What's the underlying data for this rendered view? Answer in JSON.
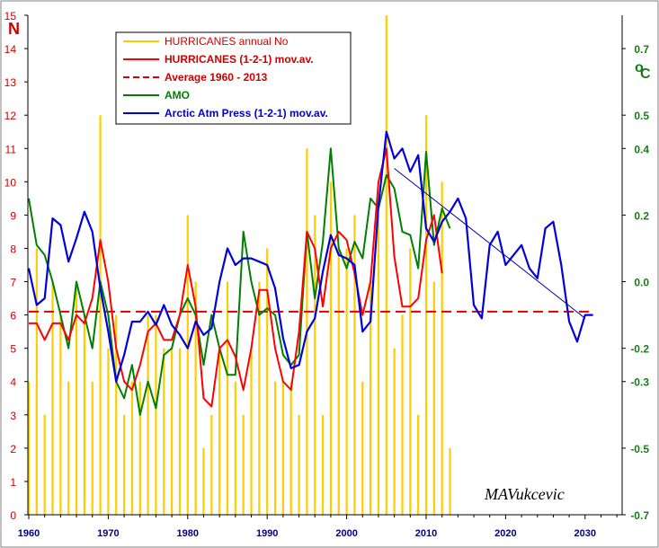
{
  "chart_data": {
    "type": "bar+line",
    "ylabel_left": "N",
    "ylabel_right_super": "o",
    "ylabel_right": "C",
    "signature": "MAVukcevic",
    "xlim": [
      1960,
      2034
    ],
    "x_ticks": [
      1960,
      1970,
      1980,
      1990,
      2000,
      2010,
      2020,
      2030
    ],
    "ylim_left": [
      0,
      15
    ],
    "y_ticks_left": [
      0,
      1,
      2,
      3,
      4,
      5,
      6,
      7,
      8,
      9,
      10,
      11,
      12,
      13,
      14,
      15
    ],
    "ylim_right": [
      -0.7,
      0.8
    ],
    "y_ticks_right": [
      0.7,
      0.5,
      0.4,
      0.2,
      0.0,
      -0.2,
      -0.3,
      -0.5,
      -0.7
    ],
    "y_tick_labels_right": [
      "0.7",
      "0.5",
      "0.4",
      "0.2",
      "0.0",
      "-0.2",
      "-0.3",
      "-0.5",
      "-0.7"
    ],
    "colors": {
      "hurricanes_bar": "#ffcc00",
      "hurricanes_ma": "#ff0000",
      "average": "#dd0000",
      "amo": "#008000",
      "arctic": "#0000dd",
      "trend": "#0000aa",
      "right_axis": "#1a7a1a",
      "left_axis": "#cc0000",
      "x_axis": "#000080"
    },
    "legend": [
      {
        "label": "HURRICANES annual No",
        "style": "bar"
      },
      {
        "label": "HURRICANES (1-2-1) mov.av.",
        "style": "line"
      },
      {
        "label": "Average 1960 - 2013",
        "style": "dashed"
      },
      {
        "label": "AMO",
        "style": "line"
      },
      {
        "label": "Arctic Atm Press (1-2-1) mov.av.",
        "style": "line"
      }
    ],
    "series": [
      {
        "key": "hurricanes_annual",
        "axis": "left",
        "kind": "bar",
        "x": [
          1960,
          1961,
          1962,
          1963,
          1964,
          1965,
          1966,
          1967,
          1968,
          1969,
          1970,
          1971,
          1972,
          1973,
          1974,
          1975,
          1976,
          1977,
          1978,
          1979,
          1980,
          1981,
          1982,
          1983,
          1984,
          1985,
          1986,
          1987,
          1988,
          1989,
          1990,
          1991,
          1992,
          1993,
          1994,
          1995,
          1996,
          1997,
          1998,
          1999,
          2000,
          2001,
          2002,
          2003,
          2004,
          2005,
          2006,
          2007,
          2008,
          2009,
          2010,
          2011,
          2012,
          2013
        ],
        "values": [
          4,
          8,
          3,
          7,
          6,
          4,
          7,
          6,
          4,
          12,
          5,
          6,
          3,
          4,
          4,
          6,
          6,
          5,
          5,
          5,
          9,
          7,
          2,
          3,
          5,
          7,
          4,
          3,
          5,
          7,
          8,
          4,
          4,
          4,
          3,
          11,
          9,
          3,
          10,
          8,
          8,
          9,
          4,
          7,
          9,
          15,
          5,
          6,
          8,
          3,
          12,
          7,
          10,
          2
        ]
      },
      {
        "key": "hurricanes_ma",
        "axis": "left",
        "kind": "line",
        "x": [
          1960,
          1961,
          1962,
          1963,
          1964,
          1965,
          1966,
          1967,
          1968,
          1969,
          1970,
          1971,
          1972,
          1973,
          1974,
          1975,
          1976,
          1977,
          1978,
          1979,
          1980,
          1981,
          1982,
          1983,
          1984,
          1985,
          1986,
          1987,
          1988,
          1989,
          1990,
          1991,
          1992,
          1993,
          1994,
          1995,
          1996,
          1997,
          1998,
          1999,
          2000,
          2001,
          2002,
          2003,
          2004,
          2005,
          2006,
          2007,
          2008,
          2009,
          2010,
          2011,
          2012
        ],
        "values": [
          5.75,
          5.75,
          5.25,
          5.75,
          5.75,
          5.25,
          6.0,
          5.75,
          6.5,
          8.25,
          7.0,
          5.0,
          4.0,
          3.75,
          4.5,
          5.5,
          5.75,
          5.25,
          5.25,
          6.0,
          7.5,
          6.25,
          3.5,
          3.25,
          5.0,
          5.25,
          4.75,
          3.75,
          5.0,
          6.75,
          6.75,
          5.0,
          4.0,
          3.75,
          5.5,
          8.5,
          8.0,
          6.25,
          8.0,
          8.5,
          8.25,
          7.25,
          6.0,
          7.0,
          10.0,
          11.0,
          7.75,
          6.25,
          6.25,
          6.5,
          8.25,
          9.0,
          7.25
        ]
      },
      {
        "key": "average",
        "axis": "left",
        "kind": "hline",
        "x": [
          1960,
          2031
        ],
        "value": 6.1
      },
      {
        "key": "amo",
        "axis": "right",
        "kind": "line",
        "x": [
          1960,
          1961,
          1962,
          1963,
          1964,
          1965,
          1966,
          1967,
          1968,
          1969,
          1970,
          1971,
          1972,
          1973,
          1974,
          1975,
          1976,
          1977,
          1978,
          1979,
          1980,
          1981,
          1982,
          1983,
          1984,
          1985,
          1986,
          1987,
          1988,
          1989,
          1990,
          1991,
          1992,
          1993,
          1994,
          1995,
          1996,
          1997,
          1998,
          1999,
          2000,
          2001,
          2002,
          2003,
          2004,
          2005,
          2006,
          2007,
          2008,
          2009,
          2010,
          2011,
          2012,
          2013
        ],
        "values": [
          0.25,
          0.11,
          0.08,
          0.0,
          -0.1,
          -0.2,
          0.0,
          -0.1,
          -0.2,
          0.0,
          -0.1,
          -0.3,
          -0.35,
          -0.25,
          -0.4,
          -0.3,
          -0.38,
          -0.22,
          -0.2,
          -0.1,
          -0.05,
          -0.1,
          -0.25,
          -0.1,
          -0.2,
          -0.28,
          -0.28,
          0.15,
          0.0,
          -0.1,
          -0.08,
          -0.1,
          -0.22,
          -0.25,
          -0.22,
          0.15,
          -0.05,
          0.12,
          0.4,
          0.1,
          0.04,
          0.12,
          0.07,
          0.25,
          0.22,
          0.32,
          0.28,
          0.15,
          0.14,
          0.04,
          0.39,
          0.11,
          0.22,
          0.16
        ]
      },
      {
        "key": "arctic",
        "axis": "right",
        "kind": "line",
        "x": [
          1960,
          1961,
          1962,
          1963,
          1964,
          1965,
          1966,
          1967,
          1968,
          1969,
          1970,
          1971,
          1972,
          1973,
          1974,
          1975,
          1976,
          1977,
          1978,
          1979,
          1980,
          1981,
          1982,
          1983,
          1984,
          1985,
          1986,
          1987,
          1988,
          1989,
          1990,
          1991,
          1992,
          1993,
          1994,
          1995,
          1996,
          1997,
          1998,
          1999,
          2000,
          2001,
          2002,
          2003,
          2004,
          2005,
          2006,
          2007,
          2008,
          2009,
          2010,
          2011,
          2012,
          2013,
          2014,
          2015,
          2016,
          2017,
          2018,
          2019,
          2020,
          2021,
          2022,
          2023,
          2024,
          2025,
          2026,
          2027,
          2028,
          2029,
          2030,
          2031
        ],
        "values": [
          0.04,
          -0.07,
          -0.05,
          0.19,
          0.17,
          0.06,
          0.13,
          0.21,
          0.15,
          -0.02,
          -0.15,
          -0.3,
          -0.22,
          -0.12,
          -0.12,
          -0.09,
          -0.13,
          -0.07,
          -0.13,
          -0.16,
          -0.2,
          -0.12,
          -0.16,
          -0.14,
          0.0,
          0.1,
          0.05,
          0.07,
          0.07,
          0.06,
          0.05,
          -0.02,
          -0.17,
          -0.26,
          -0.25,
          -0.15,
          -0.11,
          0.03,
          0.14,
          0.08,
          0.07,
          0.05,
          -0.15,
          -0.12,
          0.23,
          0.45,
          0.37,
          0.4,
          0.33,
          0.38,
          0.16,
          0.12,
          0.18,
          0.21,
          0.25,
          0.19,
          -0.07,
          -0.11,
          0.11,
          0.15,
          0.05,
          0.08,
          0.11,
          0.04,
          0.01,
          0.16,
          0.18,
          0.05,
          -0.12,
          -0.18,
          -0.1,
          -0.1
        ]
      },
      {
        "key": "trend",
        "axis": "right",
        "kind": "line",
        "x": [
          2006,
          2030
        ],
        "values": [
          0.34,
          -0.11
        ]
      }
    ]
  }
}
